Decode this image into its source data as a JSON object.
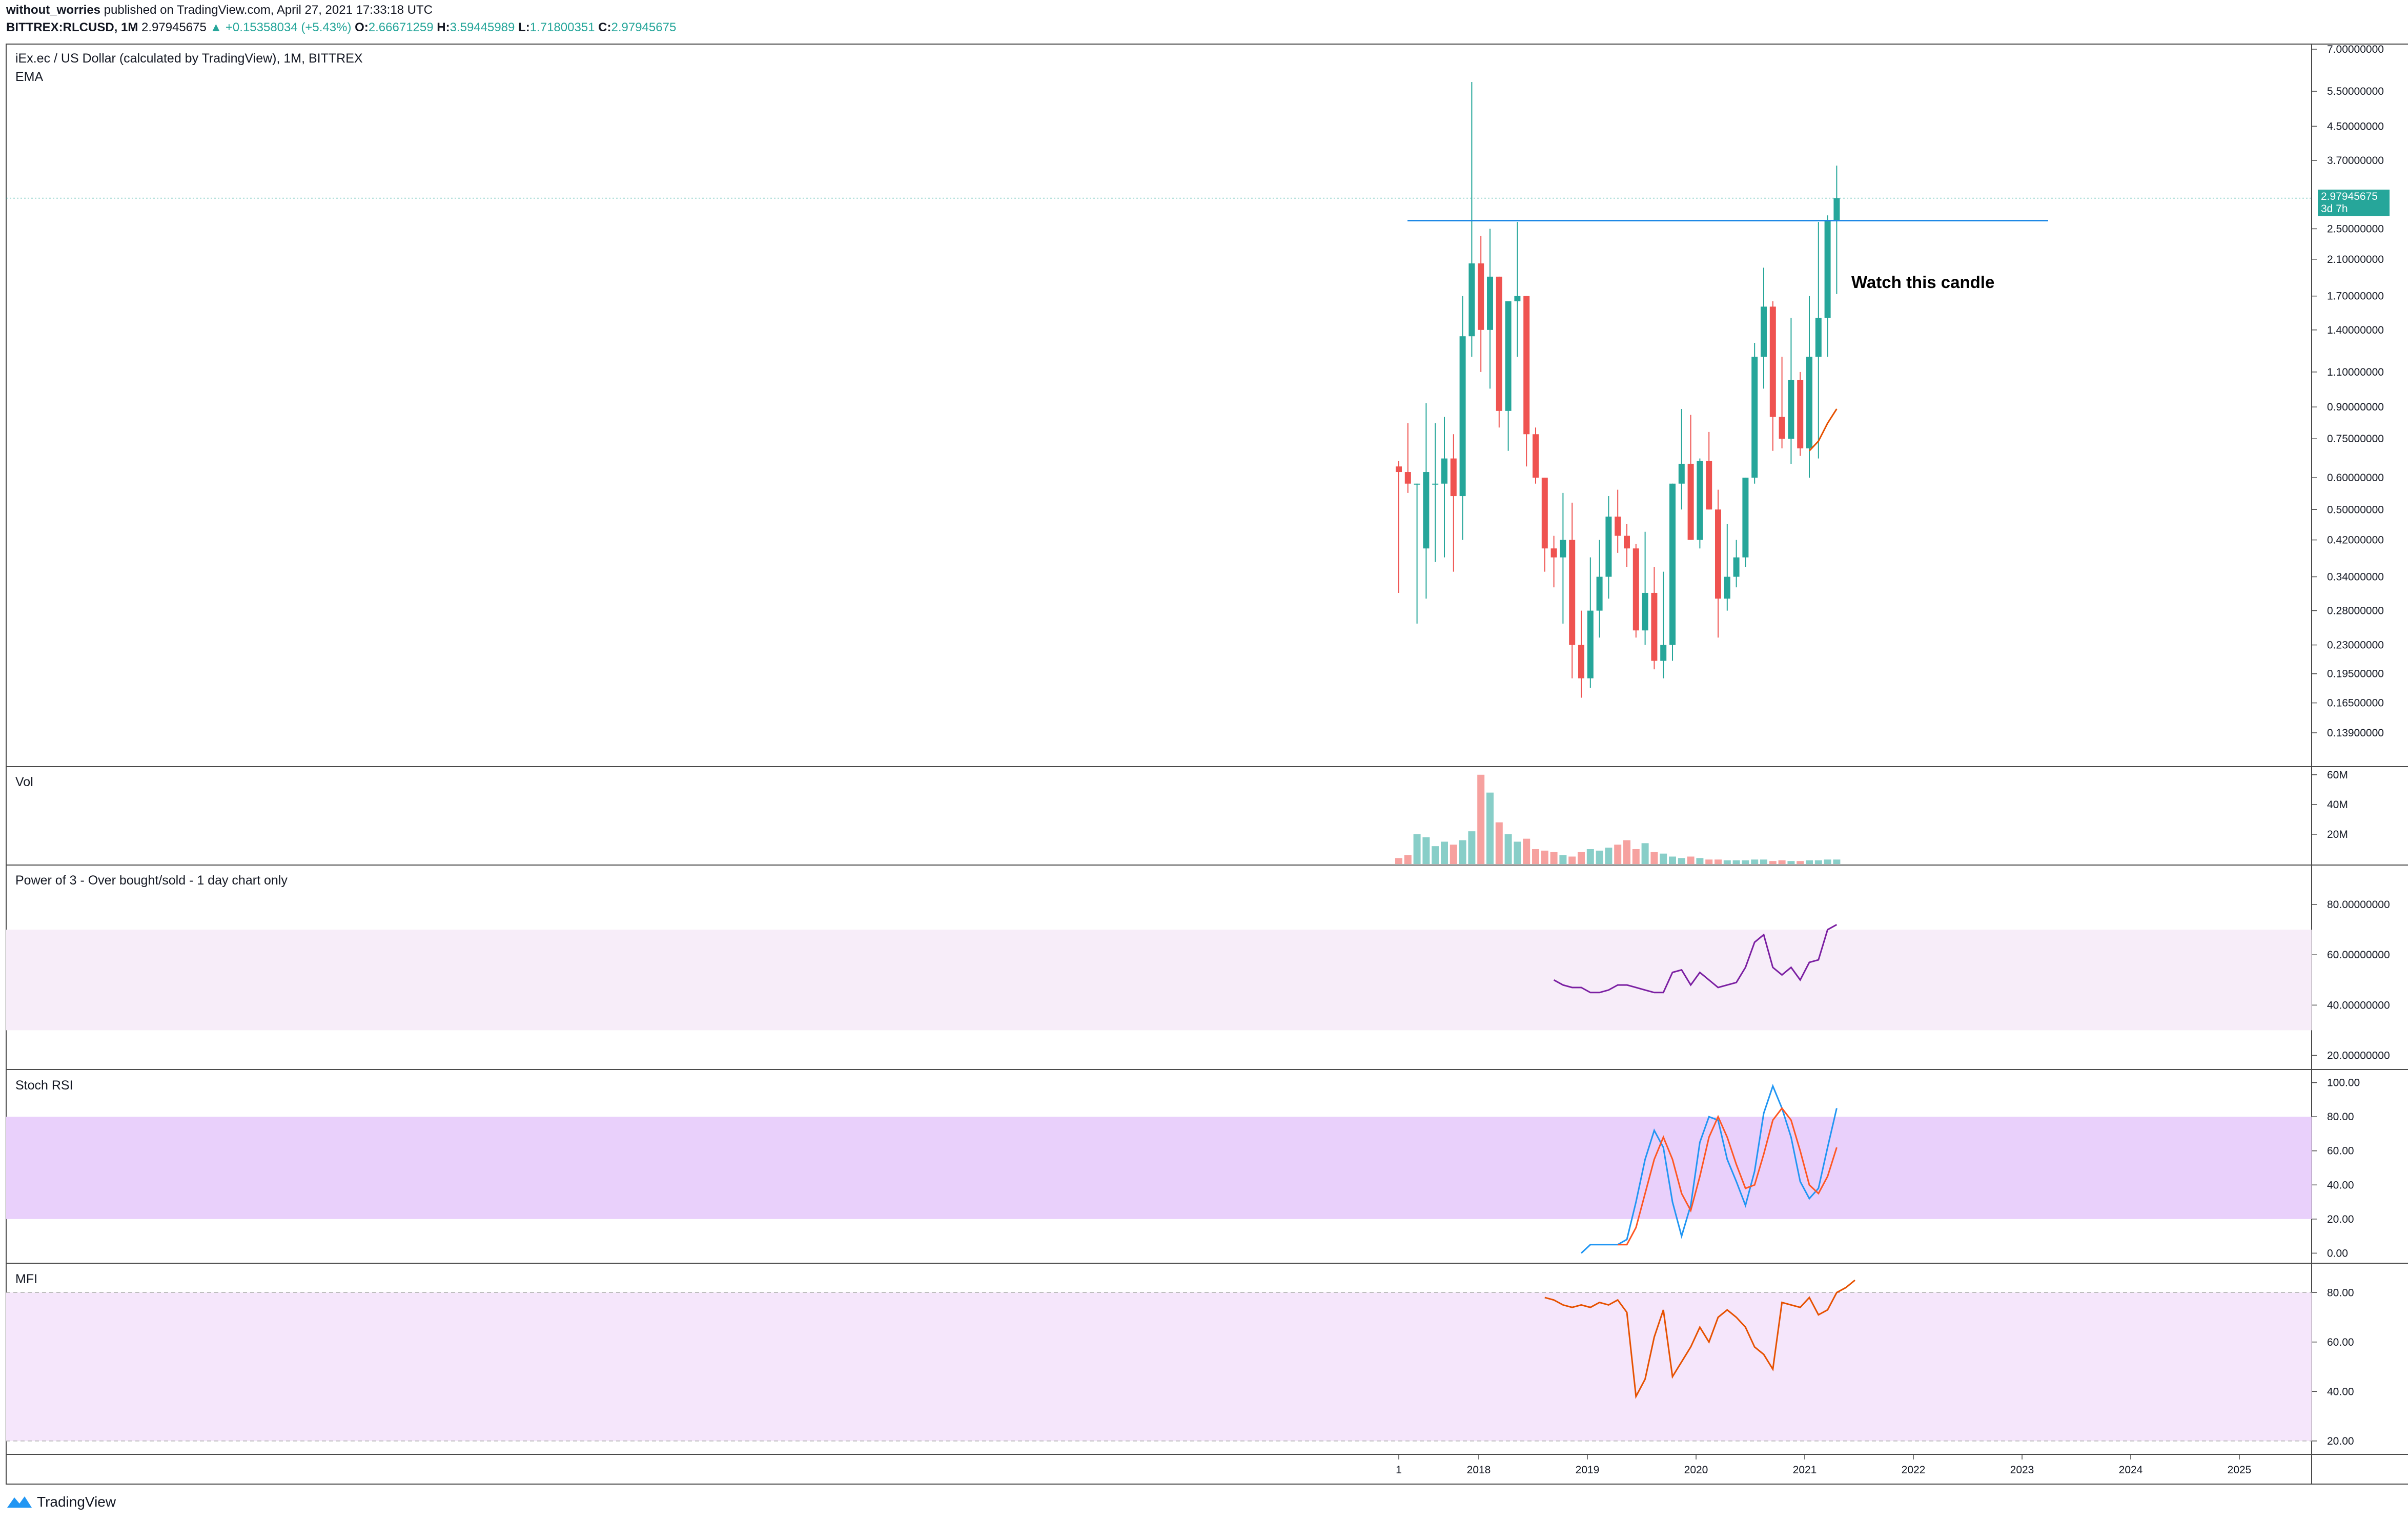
{
  "header": {
    "publisher": "without_worries",
    "published_text": "published on TradingView.com, April 27, 2021 17:33:18 UTC",
    "symbol": "BITTREX:RLCUSD, 1M",
    "last": "2.97945675",
    "change": "▲ +0.15358034 (+5.43%)",
    "o_label": "O:",
    "o_value": "2.66671259",
    "h_label": "H:",
    "h_value": "3.59445989",
    "l_label": "L:",
    "l_value": "1.71800351",
    "c_label": "C:",
    "c_value": "2.97945675"
  },
  "main_pane": {
    "title": "iEx.ec / US Dollar (calculated by TradingView), 1M, BITTREX",
    "indicator": "EMA",
    "annotation": "Watch this candle",
    "price_tag_value": "2.97945675",
    "price_tag_countdown": "3d 7h"
  },
  "panes": {
    "vol": "Vol",
    "power3": "Power of 3 - Over bought/sold - 1 day chart only",
    "stoch": "Stoch RSI",
    "mfi": "MFI"
  },
  "footer": {
    "brand": "TradingView"
  },
  "colors": {
    "up": "#26a69a",
    "down": "#ef5350",
    "ema": "#e65100",
    "power3": "#7b1fa2",
    "stoch_k": "#2196f3",
    "stoch_d": "#ff5722",
    "mfi": "#e65100",
    "hline": "#1e88e5"
  },
  "chart_data": [
    {
      "type": "candlestick",
      "pane": "price",
      "scale": "log",
      "ylim": [
        0.12,
        7.0
      ],
      "y_ticks": [
        "7.00000000",
        "5.50000000",
        "4.50000000",
        "3.70000000",
        "2.50000000",
        "2.10000000",
        "1.70000000",
        "1.40000000",
        "1.10000000",
        "0.90000000",
        "0.75000000",
        "0.60000000",
        "0.50000000",
        "0.42000000",
        "0.34000000",
        "0.28000000",
        "0.23000000",
        "0.19500000",
        "0.16500000",
        "0.13900000"
      ],
      "x_ticks": [
        "1",
        "2018",
        "2019",
        "2020",
        "2021",
        "2022",
        "2023",
        "2024",
        "2025"
      ],
      "start": "2017-05",
      "candles": [
        [
          0.64,
          0.66,
          0.31,
          0.62
        ],
        [
          0.62,
          0.82,
          0.55,
          0.58
        ],
        [
          0.58,
          0.58,
          0.26,
          0.58
        ],
        [
          0.4,
          0.92,
          0.3,
          0.62
        ],
        [
          0.58,
          0.82,
          0.37,
          0.58
        ],
        [
          0.58,
          0.85,
          0.38,
          0.67
        ],
        [
          0.67,
          0.77,
          0.35,
          0.54
        ],
        [
          0.54,
          1.7,
          0.42,
          1.35
        ],
        [
          1.35,
          5.8,
          1.2,
          2.05
        ],
        [
          2.05,
          2.4,
          1.1,
          1.4
        ],
        [
          1.4,
          2.5,
          1.0,
          1.9
        ],
        [
          1.9,
          1.9,
          0.8,
          0.88
        ],
        [
          0.88,
          1.6,
          0.7,
          1.65
        ],
        [
          1.65,
          2.6,
          1.2,
          1.7
        ],
        [
          1.7,
          1.7,
          0.64,
          0.77
        ],
        [
          0.77,
          0.8,
          0.58,
          0.6
        ],
        [
          0.6,
          0.6,
          0.35,
          0.4
        ],
        [
          0.4,
          0.43,
          0.32,
          0.38
        ],
        [
          0.38,
          0.55,
          0.26,
          0.42
        ],
        [
          0.42,
          0.52,
          0.19,
          0.23
        ],
        [
          0.23,
          0.28,
          0.17,
          0.19
        ],
        [
          0.19,
          0.38,
          0.18,
          0.28
        ],
        [
          0.28,
          0.42,
          0.24,
          0.34
        ],
        [
          0.34,
          0.54,
          0.3,
          0.48
        ],
        [
          0.48,
          0.56,
          0.39,
          0.43
        ],
        [
          0.43,
          0.46,
          0.36,
          0.4
        ],
        [
          0.4,
          0.41,
          0.24,
          0.25
        ],
        [
          0.25,
          0.44,
          0.23,
          0.31
        ],
        [
          0.31,
          0.36,
          0.2,
          0.21
        ],
        [
          0.21,
          0.35,
          0.19,
          0.23
        ],
        [
          0.23,
          0.58,
          0.21,
          0.58
        ],
        [
          0.58,
          0.89,
          0.5,
          0.65
        ],
        [
          0.65,
          0.86,
          0.42,
          0.42
        ],
        [
          0.42,
          0.67,
          0.4,
          0.66
        ],
        [
          0.66,
          0.78,
          0.5,
          0.5
        ],
        [
          0.5,
          0.56,
          0.24,
          0.3
        ],
        [
          0.3,
          0.46,
          0.28,
          0.34
        ],
        [
          0.34,
          0.42,
          0.32,
          0.38
        ],
        [
          0.38,
          0.6,
          0.36,
          0.6
        ],
        [
          0.6,
          1.3,
          0.58,
          1.2
        ],
        [
          1.2,
          2.0,
          1.0,
          1.6
        ],
        [
          1.6,
          1.65,
          0.7,
          0.85
        ],
        [
          0.85,
          1.2,
          0.71,
          0.75
        ],
        [
          0.75,
          1.5,
          0.65,
          1.05
        ],
        [
          1.05,
          1.1,
          0.68,
          0.71
        ],
        [
          0.71,
          1.7,
          0.6,
          1.2
        ],
        [
          1.2,
          2.6,
          0.67,
          1.5
        ],
        [
          1.5,
          2.7,
          1.2,
          2.62
        ],
        [
          2.62,
          3.59,
          1.72,
          2.98
        ]
      ]
    },
    {
      "type": "line",
      "pane": "price",
      "series": [
        {
          "values": [
            0.7,
            0.74,
            0.82,
            0.89
          ]
        }
      ],
      "x_start_index": 45
    },
    {
      "type": "bar",
      "pane": "volume",
      "y_ticks": [
        "60M",
        "40M",
        "20M"
      ],
      "ylim": [
        0,
        62
      ],
      "values": [
        4,
        6,
        20,
        18,
        12,
        15,
        13,
        16,
        22,
        60,
        48,
        28,
        20,
        15,
        17,
        10,
        9,
        8,
        6,
        5,
        8,
        10,
        9,
        11,
        13,
        16,
        10,
        14,
        8,
        7,
        5,
        4,
        5,
        4,
        3,
        3,
        2.5,
        2.5,
        2.5,
        3,
        3,
        2,
        2.5,
        2,
        2,
        2.5,
        2.5,
        3,
        3
      ]
    },
    {
      "type": "line",
      "pane": "power3",
      "ylim": [
        15,
        90
      ],
      "y_ticks": [
        "80.00000000",
        "60.00000000",
        "40.00000000",
        "20.00000000"
      ],
      "band": [
        30,
        70
      ],
      "series": [
        {
          "values": [
            50,
            48,
            47,
            47,
            45,
            45,
            46,
            48,
            48,
            47,
            46,
            45,
            45,
            53,
            54,
            48,
            53,
            50,
            47,
            48,
            49,
            55,
            65,
            68,
            55,
            52,
            55,
            50,
            57,
            58,
            70,
            72
          ]
        }
      ],
      "x_start_index": 17
    },
    {
      "type": "line",
      "pane": "stoch_rsi",
      "ylim": [
        -5,
        105
      ],
      "y_ticks": [
        "100.00",
        "80.00",
        "60.00",
        "40.00",
        "20.00",
        "0.00"
      ],
      "band": [
        20,
        80
      ],
      "series": [
        {
          "values": [
            0,
            5,
            5,
            5,
            5,
            8,
            30,
            55,
            72,
            62,
            30,
            10,
            28,
            65,
            80,
            78,
            55,
            42,
            28,
            48,
            82,
            98,
            85,
            68,
            42,
            32,
            38,
            62,
            85
          ]
        },
        {
          "values": [
            null,
            null,
            null,
            null,
            5,
            5,
            15,
            35,
            55,
            68,
            55,
            35,
            25,
            45,
            68,
            80,
            68,
            52,
            38,
            40,
            58,
            78,
            85,
            78,
            60,
            40,
            35,
            45,
            62
          ]
        }
      ],
      "x_start_index": 20
    },
    {
      "type": "line",
      "pane": "mfi",
      "ylim": [
        15,
        90
      ],
      "y_ticks": [
        "80.00",
        "60.00",
        "40.00",
        "20.00"
      ],
      "band": [
        20,
        80
      ],
      "series": [
        {
          "values": [
            78,
            77,
            75,
            74,
            75,
            74,
            76,
            75,
            77,
            72,
            38,
            45,
            62,
            73,
            46,
            52,
            58,
            66,
            60,
            70,
            73,
            70,
            66,
            58,
            55,
            49,
            76,
            75,
            74,
            78,
            71,
            73,
            80,
            82,
            85
          ]
        }
      ],
      "x_start_index": 16
    }
  ]
}
